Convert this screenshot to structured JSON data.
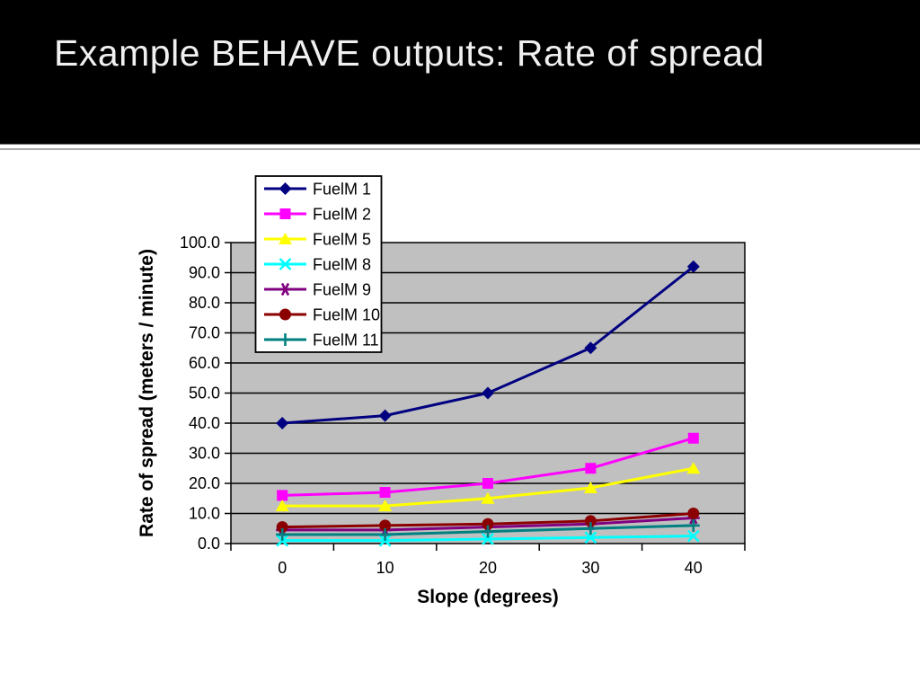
{
  "slide": {
    "title": "Example BEHAVE outputs: Rate of spread",
    "colors": {
      "header_bg": "#000000",
      "title_text": "#F0F0F0",
      "separator_line": "#A9A9A9",
      "content_bg": "#FFFFFF"
    }
  },
  "chart_data": {
    "type": "line",
    "x": [
      0,
      10,
      20,
      30,
      40
    ],
    "x_tick_labels": [
      "0",
      "10",
      "20",
      "30",
      "40"
    ],
    "xlabel": "Slope (degrees)",
    "ylabel": "Rate of spread (meters / minute)",
    "ylim": [
      0,
      100
    ],
    "y_tick_step": 10,
    "y_tick_labels": [
      "0.0",
      "10.0",
      "20.0",
      "30.0",
      "40.0",
      "50.0",
      "60.0",
      "70.0",
      "80.0",
      "90.0",
      "100.0"
    ],
    "grid": true,
    "plot_bg": "#C0C0C0",
    "gridline_color": "#000000",
    "legend_position": "top-left-overlay",
    "legend_bg": "#FFFFFF",
    "legend_border": "#000000",
    "series": [
      {
        "name": "FuelM 1",
        "color": "#000080",
        "marker": "diamond",
        "values": [
          40,
          42.5,
          50,
          65,
          92
        ]
      },
      {
        "name": "FuelM 2",
        "color": "#FF00FF",
        "marker": "square",
        "values": [
          16,
          17,
          20,
          25,
          35
        ]
      },
      {
        "name": "FuelM 5",
        "color": "#FFFF00",
        "marker": "triangle",
        "values": [
          12.5,
          12.5,
          15,
          18.5,
          25
        ]
      },
      {
        "name": "FuelM 8",
        "color": "#00FFFF",
        "marker": "x",
        "values": [
          1,
          1,
          1.5,
          2,
          2.5
        ]
      },
      {
        "name": "FuelM 9",
        "color": "#800080",
        "marker": "asterisk",
        "values": [
          4.5,
          4.5,
          5.5,
          6.5,
          8.5
        ]
      },
      {
        "name": "FuelM 10",
        "color": "#8B0000",
        "marker": "circle",
        "values": [
          5.5,
          6,
          6.5,
          7.5,
          10
        ]
      },
      {
        "name": "FuelM 11",
        "color": "#008080",
        "marker": "plus",
        "values": [
          3,
          3,
          4,
          5,
          6
        ]
      }
    ]
  }
}
